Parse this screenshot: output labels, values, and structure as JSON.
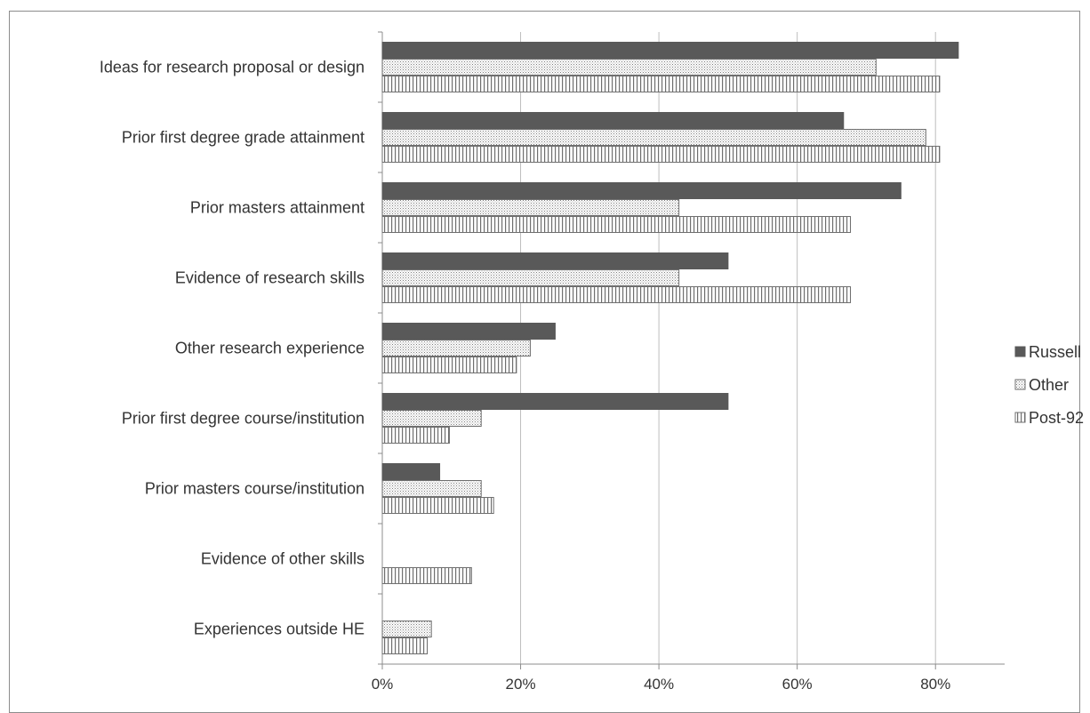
{
  "chart_data": {
    "type": "bar",
    "orientation": "horizontal",
    "categories": [
      "Ideas for research proposal or design",
      "Prior first degree grade attainment",
      "Prior masters attainment",
      "Evidence of research skills",
      "Other research experience",
      "Prior first degree course/institution",
      "Prior masters course/institution",
      "Evidence of other skills",
      "Experiences outside HE"
    ],
    "series": [
      {
        "name": "Russell",
        "values": [
          83.3,
          66.7,
          75.0,
          50.0,
          25.0,
          50.0,
          8.3,
          0,
          0
        ],
        "color": "#595959",
        "pattern": "solid"
      },
      {
        "name": "Other",
        "values": [
          71.4,
          78.6,
          42.9,
          42.9,
          21.4,
          14.3,
          14.3,
          0,
          7.1
        ],
        "color": "#7f7f7f",
        "pattern": "dots"
      },
      {
        "name": "Post-92",
        "values": [
          80.6,
          80.6,
          67.7,
          67.7,
          19.4,
          9.7,
          16.1,
          12.9,
          6.5
        ],
        "color": "#7f7f7f",
        "pattern": "vertical-stripes"
      }
    ],
    "xlim": [
      0,
      90
    ],
    "xticks": [
      "0%",
      "20%",
      "40%",
      "60%",
      "80%"
    ],
    "xtick_values": [
      0,
      20,
      40,
      60,
      80
    ],
    "grid": true,
    "legend_position": "right",
    "title": "",
    "xlabel": "",
    "ylabel": ""
  }
}
